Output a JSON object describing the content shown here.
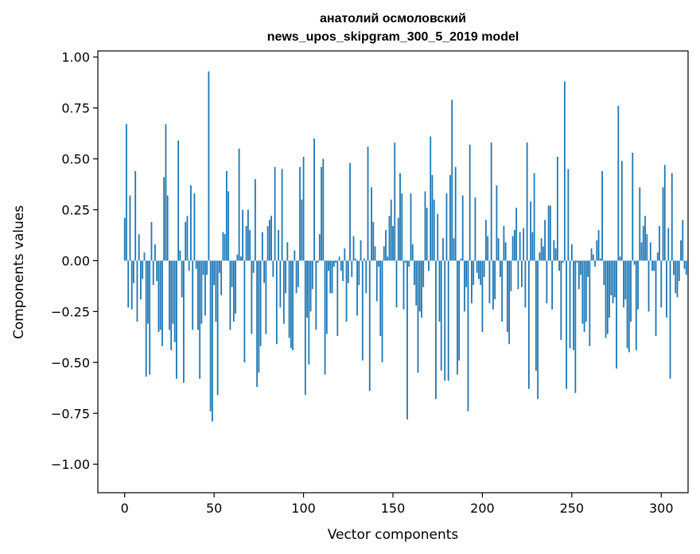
{
  "chart_data": {
    "type": "bar",
    "title": "анатолий осмоловский",
    "subtitle": "news_upos_skipgram_300_5_2019 model",
    "xlabel": "Vector components",
    "ylabel": "Components values",
    "xlim": [
      -15,
      315
    ],
    "ylim": [
      -1.14,
      1.03
    ],
    "x_ticks": [
      0,
      50,
      100,
      150,
      200,
      250,
      300
    ],
    "x_tick_labels": [
      "0",
      "50",
      "100",
      "150",
      "200",
      "250",
      "300"
    ],
    "y_ticks": [
      1.0,
      0.75,
      0.5,
      0.25,
      0.0,
      -0.25,
      -0.5,
      -0.75,
      -1.0
    ],
    "y_tick_labels": [
      "1.00",
      "0.75",
      "0.50",
      "0.25",
      "0.00",
      "−0.25",
      "−0.50",
      "−0.75",
      "−1.00"
    ],
    "bar_color": "#1f77b4",
    "values": [
      0.21,
      0.67,
      -0.23,
      0.32,
      -0.24,
      -0.11,
      0.44,
      -0.3,
      0.13,
      -0.19,
      -0.09,
      0.04,
      -0.57,
      -0.31,
      -0.56,
      0.19,
      -0.12,
      0.08,
      -0.1,
      -0.35,
      -0.34,
      -0.42,
      0.41,
      0.67,
      0.32,
      -0.34,
      -0.44,
      -0.31,
      -0.4,
      -0.58,
      0.59,
      0.05,
      -0.18,
      -0.6,
      0.19,
      0.22,
      -0.05,
      0.37,
      -0.34,
      0.33,
      -0.04,
      -0.34,
      -0.58,
      -0.31,
      -0.07,
      -0.27,
      -0.07,
      0.93,
      -0.74,
      -0.79,
      -0.12,
      -0.3,
      -0.66,
      -0.06,
      -0.17,
      0.14,
      0.13,
      0.44,
      0.34,
      -0.34,
      -0.13,
      -0.3,
      -0.26,
      0.03,
      0.55,
      0.02,
      0.25,
      -0.5,
      0.17,
      0.25,
      0.15,
      -0.36,
      -0.06,
      0.4,
      -0.62,
      -0.55,
      -0.42,
      0.14,
      -0.11,
      -0.36,
      0.17,
      0.2,
      0.22,
      -0.08,
      0.46,
      -0.41,
      0.15,
      -0.23,
      0.45,
      -0.31,
      -0.16,
      0.09,
      -0.38,
      -0.43,
      -0.44,
      0.05,
      -0.16,
      -0.13,
      0.46,
      0.3,
      0.51,
      -0.66,
      -0.28,
      -0.51,
      -0.25,
      -0.14,
      0.6,
      -0.34,
      -0.01,
      0.13,
      0.46,
      0.5,
      -0.56,
      -0.36,
      -0.05,
      -0.16,
      -0.16,
      -0.03,
      -0.01,
      -0.37,
      0.02,
      -0.05,
      -0.1,
      0.06,
      -0.3,
      -0.11,
      0.48,
      -0.08,
      0.12,
      0.01,
      -0.27,
      -0.12,
      0.1,
      -0.49,
      0.01,
      -0.16,
      0.56,
      -0.64,
      0.36,
      0.19,
      0.07,
      -0.2,
      -0.03,
      -0.37,
      -0.5,
      0.07,
      0.15,
      0.02,
      0.22,
      0.3,
      0.17,
      0.58,
      -0.23,
      0.21,
      0.43,
      0.33,
      -0.24,
      -0.01,
      -0.78,
      -0.03,
      0.33,
      0.08,
      -0.12,
      -0.22,
      -0.55,
      -0.25,
      -0.28,
      -0.13,
      0.34,
      0.26,
      -0.05,
      0.61,
      0.42,
      0.3,
      -0.68,
      0.23,
      -0.3,
      -0.54,
      0.11,
      -0.59,
      0.33,
      -0.59,
      0.42,
      0.79,
      0.11,
      0.46,
      -0.56,
      -0.49,
      0.01,
      0.32,
      -0.25,
      -0.13,
      -0.74,
      0.57,
      -0.21,
      -0.12,
      0.31,
      -0.06,
      -0.09,
      -0.12,
      -0.35,
      -0.08,
      0.2,
      0.12,
      -0.21,
      0.58,
      -0.24,
      -0.19,
      0.37,
      0.11,
      -0.08,
      -0.3,
      0.17,
      0.09,
      -0.35,
      -0.41,
      -0.15,
      0.12,
      0.15,
      0.26,
      -0.14,
      0.14,
      -0.13,
      0.16,
      -0.23,
      0.58,
      -0.63,
      0.29,
      0.14,
      0.43,
      -0.54,
      -0.68,
      0.04,
      0.11,
      0.07,
      0.2,
      -0.21,
      0.27,
      0.27,
      -0.24,
      0.1,
      0.06,
      0.51,
      -0.05,
      -0.39,
      -0.01,
      0.88,
      -0.63,
      0.45,
      -0.43,
      0.08,
      -0.44,
      -0.65,
      -0.01,
      -0.14,
      -0.07,
      -0.31,
      -0.35,
      -0.3,
      -0.08,
      -0.42,
      0.06,
      0.03,
      -0.03,
      0.1,
      0.15,
      0.01,
      0.44,
      -0.12,
      -0.38,
      -0.36,
      -0.28,
      -0.17,
      -0.21,
      -0.18,
      -0.53,
      0.76,
      0.02,
      0.49,
      -0.23,
      -0.19,
      -0.43,
      -0.45,
      -0.3,
      0.53,
      -0.02,
      -0.44,
      -0.24,
      0.36,
      0.09,
      0.17,
      0.22,
      0.13,
      -0.25,
      0.09,
      -0.05,
      -0.05,
      -0.37,
      0.04,
      0.17,
      -0.23,
      0.36,
      0.47,
      -0.28,
      0.16,
      -0.58,
      0.43,
      -0.07,
      -0.16,
      -0.18,
      -0.1,
      0.1,
      0.2,
      -0.04,
      -0.07
    ]
  }
}
